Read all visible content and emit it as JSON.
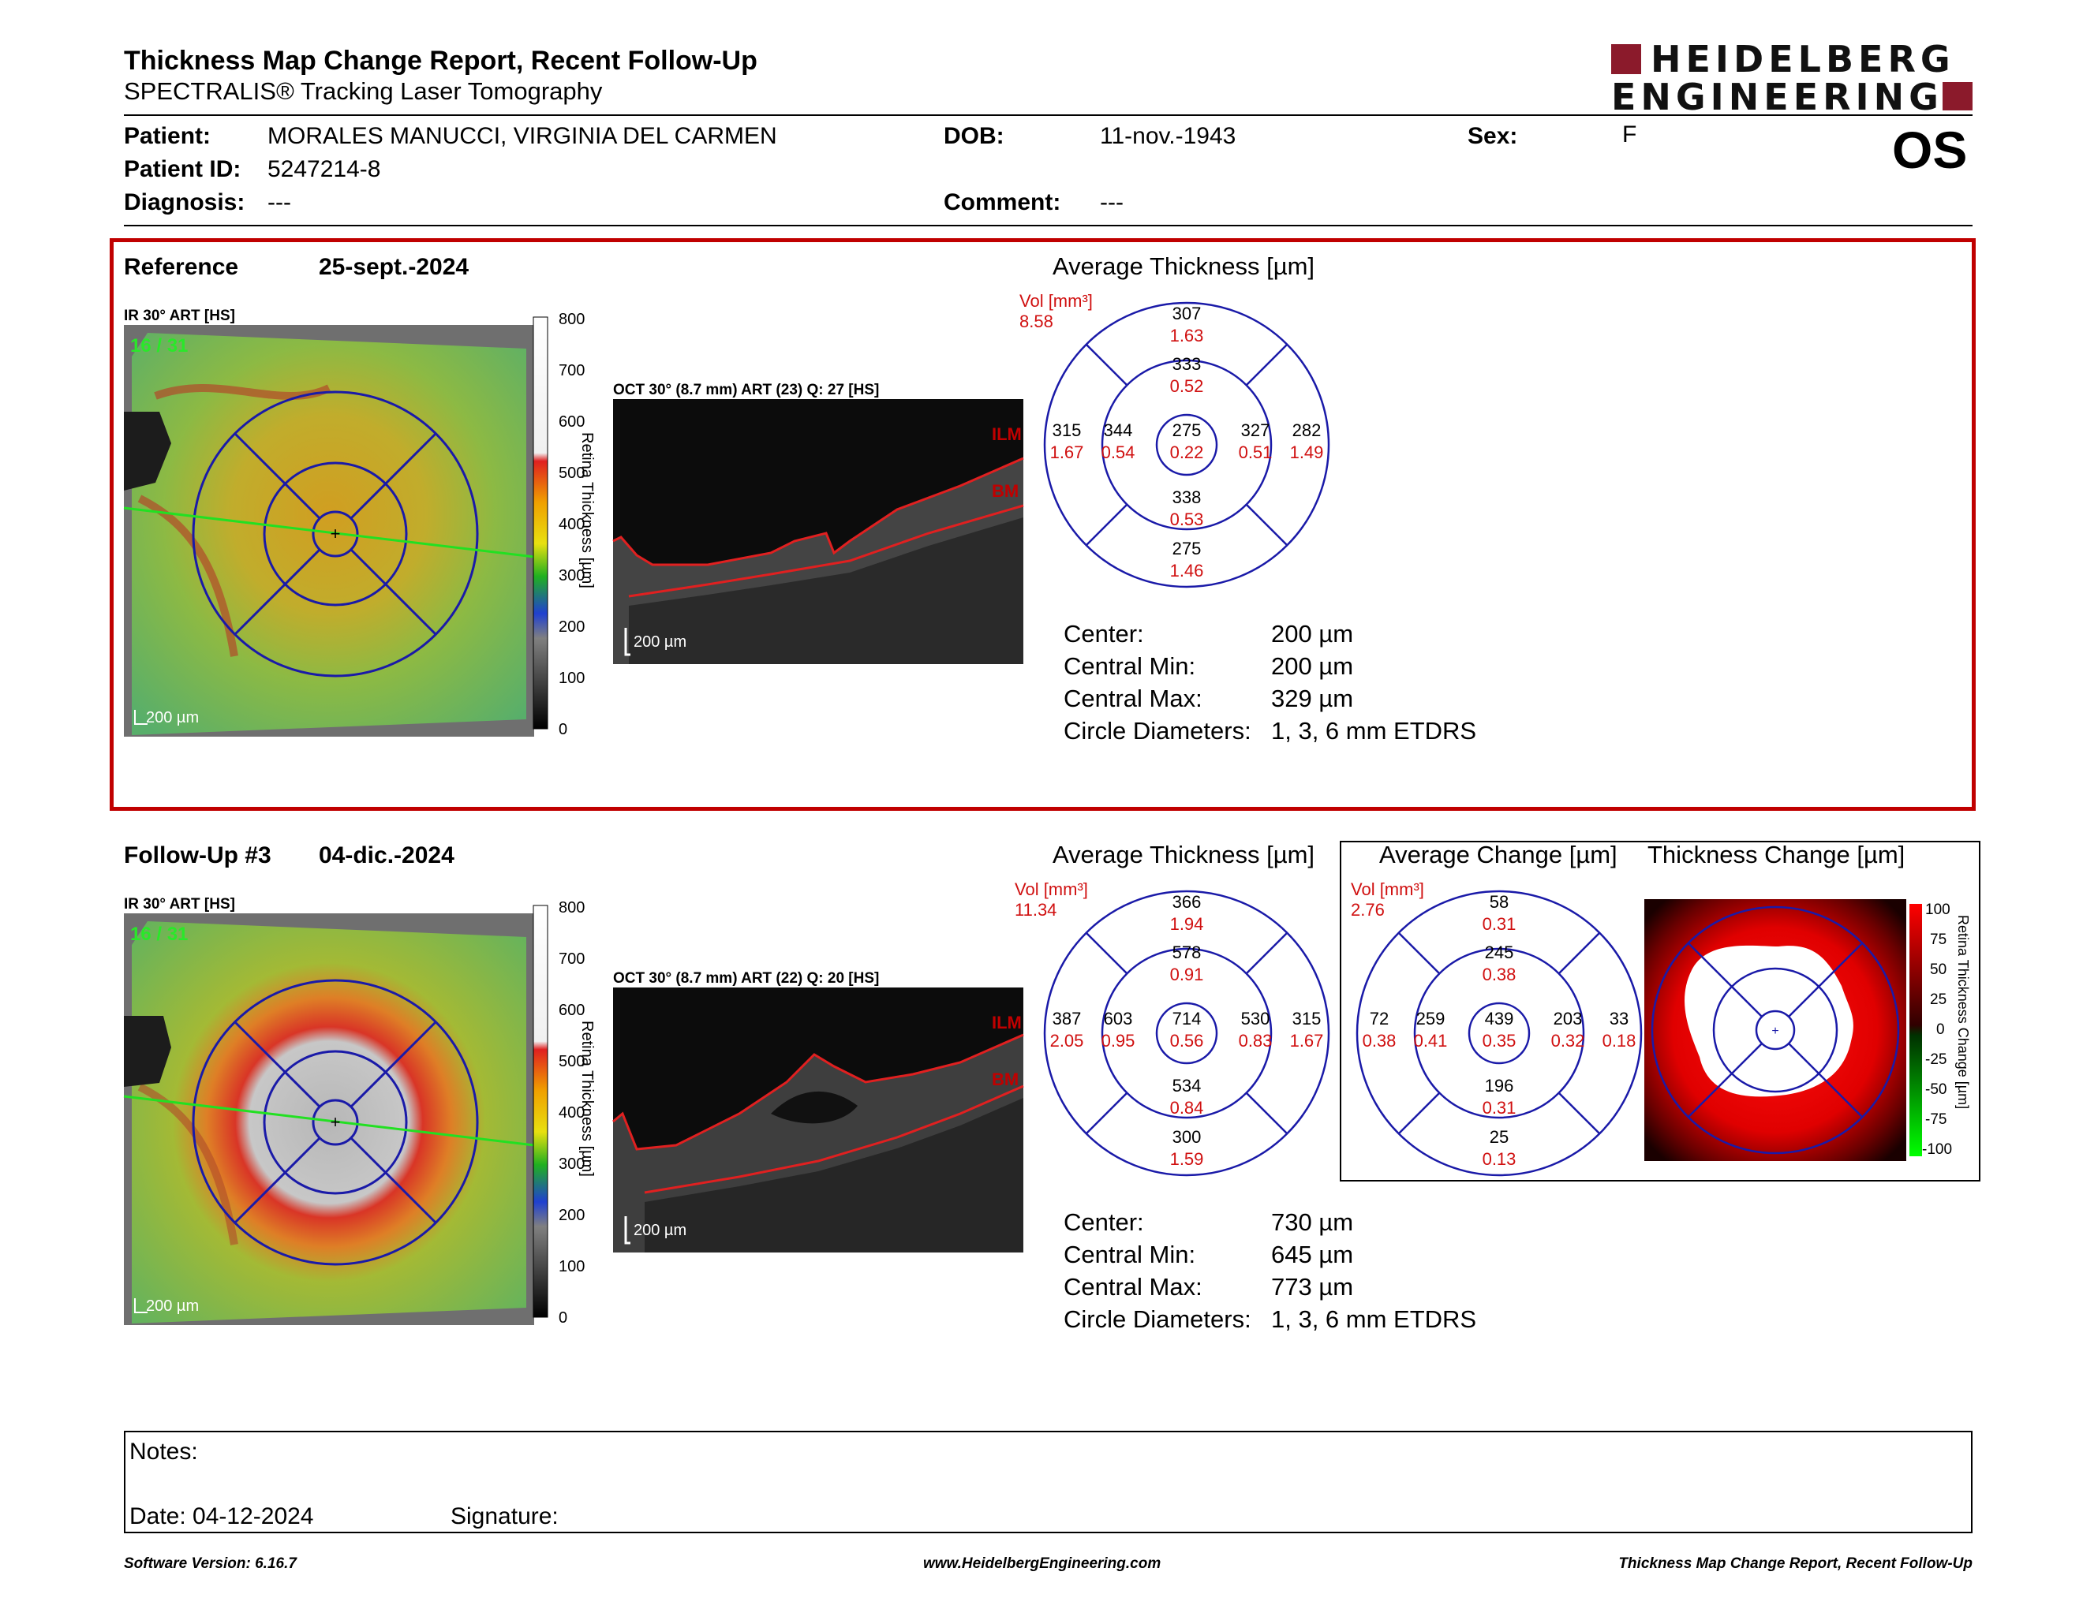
{
  "header": {
    "title": "Thickness Map Change Report, Recent Follow-Up",
    "subtitle": "SPECTRALIS® Tracking Laser Tomography",
    "logo_line1": "HEIDELBERG",
    "logo_line2": "ENGINEERING",
    "eye": "OS"
  },
  "patient": {
    "patient_label": "Patient:",
    "patient_value": "MORALES MANUCCI, VIRGINIA DEL CARMEN",
    "id_label": "Patient ID:",
    "id_value": "5247214-8",
    "diagnosis_label": "Diagnosis:",
    "diagnosis_value": "---",
    "dob_label": "DOB:",
    "dob_value": "11-nov.-1943",
    "comment_label": "Comment:",
    "comment_value": "---",
    "sex_label": "Sex:",
    "sex_value": "F"
  },
  "colors": {
    "accent_red": "#c00000",
    "etdrs_blue": "#1a1aa8",
    "value_red": "#d01010"
  },
  "reference": {
    "label": "Reference",
    "date": "25-sept.-2024",
    "ir_label": "IR 30° ART [HS]",
    "ir_counter": "16 / 31",
    "ir_scale": "200 µm",
    "oct_label": "OCT 30° (8.7 mm) ART (23) Q: 27 [HS]",
    "oct_scale": "200 µm",
    "ilm": "ILM",
    "bm": "BM",
    "colorbar_ticks": [
      "800",
      "700",
      "600",
      "500",
      "400",
      "300",
      "200",
      "100",
      "0"
    ],
    "colorbar_title": "Retina Thickness [µm]",
    "avg_title": "Average Thickness [µm]",
    "vol_label": "Vol [mm³]",
    "vol_total": "8.58",
    "etdrs": {
      "outer_sup": [
        "307",
        "1.63"
      ],
      "inner_sup": [
        "333",
        "0.52"
      ],
      "outer_temp": [
        "315",
        "1.67"
      ],
      "inner_temp": [
        "344",
        "0.54"
      ],
      "center": [
        "275",
        "0.22"
      ],
      "inner_nas": [
        "327",
        "0.51"
      ],
      "outer_nas": [
        "282",
        "1.49"
      ],
      "inner_inf": [
        "338",
        "0.53"
      ],
      "outer_inf": [
        "275",
        "1.46"
      ]
    },
    "stats": [
      {
        "label": "Center:",
        "value": "200 µm"
      },
      {
        "label": "Central Min:",
        "value": "200 µm"
      },
      {
        "label": "Central Max:",
        "value": "329 µm"
      },
      {
        "label": "Circle Diameters:",
        "value": "1, 3, 6 mm ETDRS"
      }
    ]
  },
  "followup": {
    "label": "Follow-Up #3",
    "date": "04-dic.-2024",
    "ir_label": "IR 30° ART [HS]",
    "ir_counter": "16 / 31",
    "ir_scale": "200 µm",
    "oct_label": "OCT 30° (8.7 mm) ART (22) Q: 20 [HS]",
    "oct_scale": "200 µm",
    "ilm": "ILM",
    "bm": "BM",
    "colorbar_ticks": [
      "800",
      "700",
      "600",
      "500",
      "400",
      "300",
      "200",
      "100",
      "0"
    ],
    "colorbar_title": "Retina Thickness [µm]",
    "avg_title": "Average Thickness [µm]",
    "vol_label": "Vol [mm³]",
    "vol_total": "11.34",
    "etdrs": {
      "outer_sup": [
        "366",
        "1.94"
      ],
      "inner_sup": [
        "578",
        "0.91"
      ],
      "outer_temp": [
        "387",
        "2.05"
      ],
      "inner_temp": [
        "603",
        "0.95"
      ],
      "center": [
        "714",
        "0.56"
      ],
      "inner_nas": [
        "530",
        "0.83"
      ],
      "outer_nas": [
        "315",
        "1.67"
      ],
      "inner_inf": [
        "534",
        "0.84"
      ],
      "outer_inf": [
        "300",
        "1.59"
      ]
    },
    "stats": [
      {
        "label": "Center:",
        "value": "730 µm"
      },
      {
        "label": "Central Min:",
        "value": "645 µm"
      },
      {
        "label": "Central Max:",
        "value": "773 µm"
      },
      {
        "label": "Circle Diameters:",
        "value": "1, 3, 6 mm ETDRS"
      }
    ],
    "change_title": "Average Change [µm]",
    "change_vol_label": "Vol [mm³]",
    "change_vol_total": "2.76",
    "change_etdrs": {
      "outer_sup": [
        "58",
        "0.31"
      ],
      "inner_sup": [
        "245",
        "0.38"
      ],
      "outer_temp": [
        "72",
        "0.38"
      ],
      "inner_temp": [
        "259",
        "0.41"
      ],
      "center": [
        "439",
        "0.35"
      ],
      "inner_nas": [
        "203",
        "0.32"
      ],
      "outer_nas": [
        "33",
        "0.18"
      ],
      "inner_inf": [
        "196",
        "0.31"
      ],
      "outer_inf": [
        "25",
        "0.13"
      ]
    },
    "thickness_change_title": "Thickness Change [µm]",
    "change_bar_ticks": [
      "100",
      "75",
      "50",
      "25",
      "0",
      "-25",
      "-50",
      "-75",
      "-100"
    ],
    "change_bar_title": "Retina Thickness Change [µm]"
  },
  "notes": {
    "notes_label": "Notes:",
    "date_label": "Date: 04-12-2024",
    "signature_label": "Signature:"
  },
  "footer": {
    "software": "Software Version: 6.16.7",
    "website": "www.HeidelbergEngineering.com",
    "report_name": "Thickness Map Change Report, Recent Follow-Up"
  }
}
